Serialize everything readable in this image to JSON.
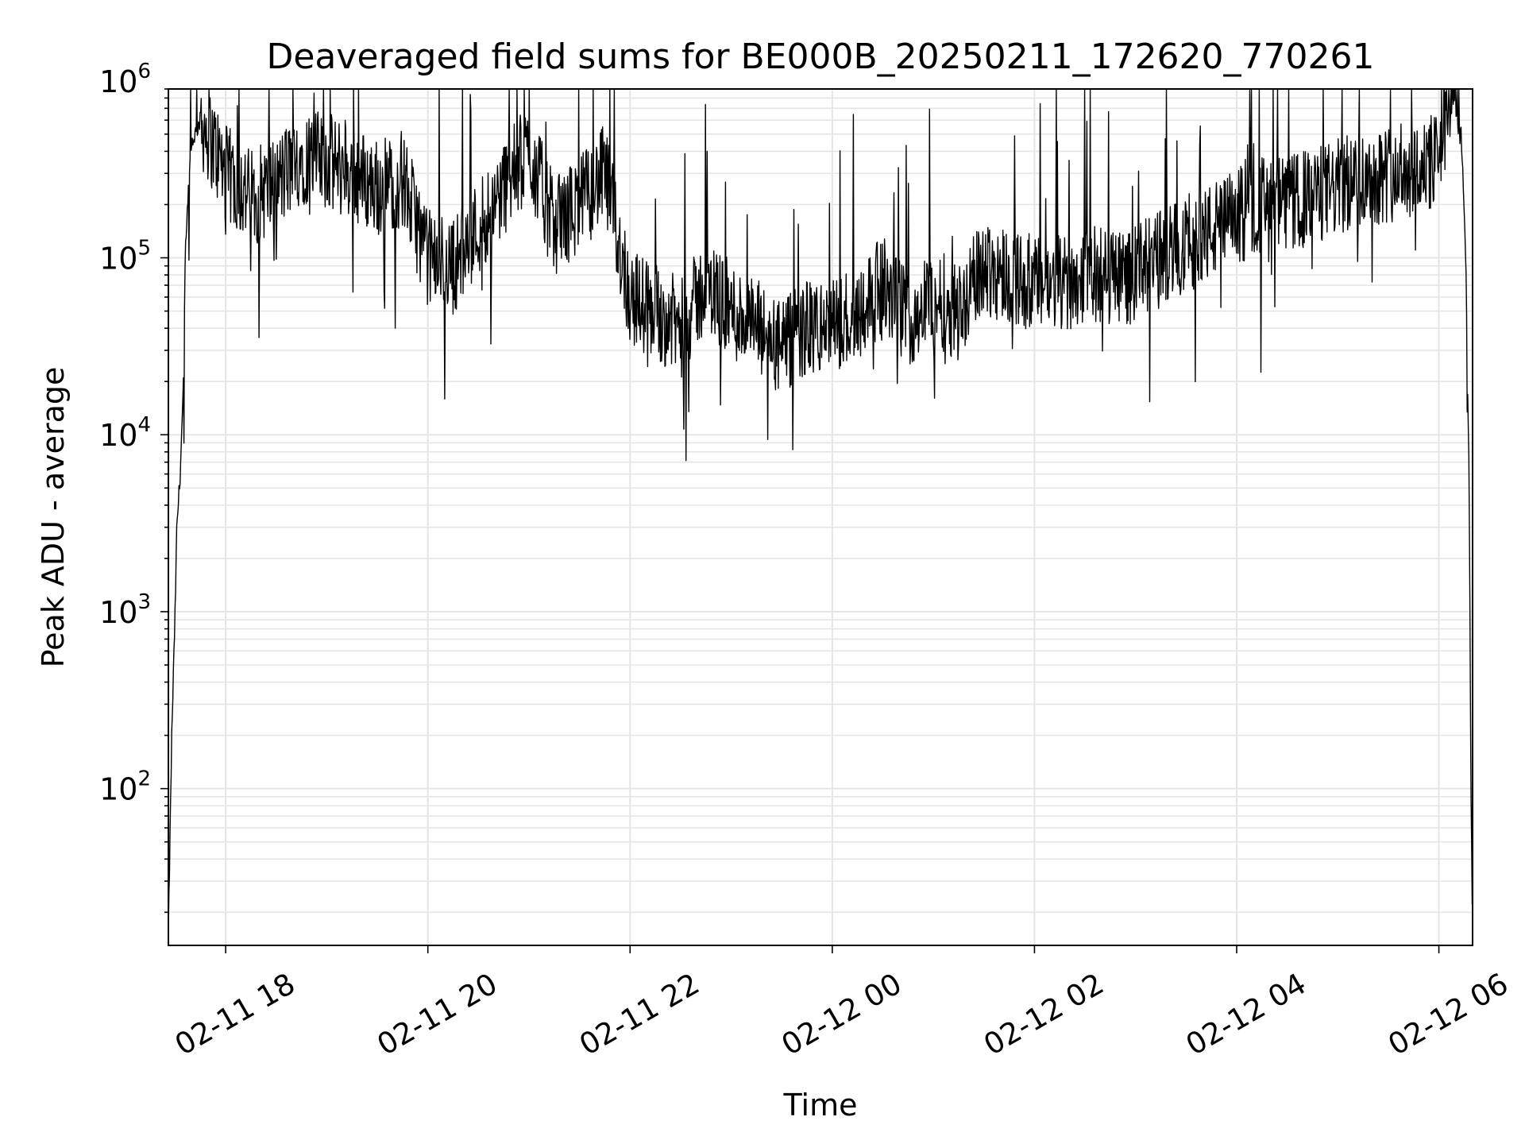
{
  "chart_data": {
    "type": "line",
    "title": "Deaveraged field sums for BE000B_20250211_172620_770261",
    "xlabel": "Time",
    "ylabel": "Peak ADU - average",
    "yscale": "log",
    "ylim": [
      13,
      900000
    ],
    "xlim": [
      "2025-02-11 17:26",
      "2025-02-12 06:20"
    ],
    "grid": true,
    "line_color": "#000000",
    "grid_color": "#e5e5e5",
    "x_ticks": [
      {
        "t": "2025-02-11 18:00",
        "label": "02-11 18"
      },
      {
        "t": "2025-02-11 20:00",
        "label": "02-11 20"
      },
      {
        "t": "2025-02-11 22:00",
        "label": "02-11 22"
      },
      {
        "t": "2025-02-12 00:00",
        "label": "02-12 00"
      },
      {
        "t": "2025-02-12 02:00",
        "label": "02-12 02"
      },
      {
        "t": "2025-02-12 04:00",
        "label": "02-12 04"
      },
      {
        "t": "2025-02-12 06:00",
        "label": "02-12 06"
      }
    ],
    "y_ticks": [
      {
        "value": 100,
        "base": "10",
        "exp": "2"
      },
      {
        "value": 1000,
        "base": "10",
        "exp": "3"
      },
      {
        "value": 10000,
        "base": "10",
        "exp": "4"
      },
      {
        "value": 100000,
        "base": "10",
        "exp": "5"
      },
      {
        "value": 1000000,
        "base": "10",
        "exp": "6"
      }
    ],
    "series": [
      {
        "x": [
          "2025-02-11 17:26",
          "2025-02-11 17:28",
          "2025-02-11 17:30",
          "2025-02-11 17:31",
          "2025-02-11 17:33",
          "2025-02-11 17:35",
          "2025-02-11 17:36",
          "2025-02-11 17:38",
          "2025-02-11 17:40",
          "2025-02-11 17:45",
          "2025-02-11 17:50",
          "2025-02-11 18:00",
          "2025-02-11 18:15",
          "2025-02-11 18:30",
          "2025-02-11 18:45",
          "2025-02-11 19:00",
          "2025-02-11 19:15",
          "2025-02-11 19:30",
          "2025-02-11 19:45",
          "2025-02-11 20:00",
          "2025-02-11 20:15",
          "2025-02-11 20:30",
          "2025-02-11 20:45",
          "2025-02-11 21:00",
          "2025-02-11 21:15",
          "2025-02-11 21:30",
          "2025-02-11 21:45",
          "2025-02-11 22:00",
          "2025-02-11 22:15",
          "2025-02-11 22:30",
          "2025-02-11 22:45",
          "2025-02-11 23:00",
          "2025-02-11 23:15",
          "2025-02-11 23:30",
          "2025-02-11 23:45",
          "2025-02-12 00:00",
          "2025-02-12 00:15",
          "2025-02-12 00:30",
          "2025-02-12 00:45",
          "2025-02-12 01:00",
          "2025-02-12 01:15",
          "2025-02-12 01:30",
          "2025-02-12 01:45",
          "2025-02-12 02:00",
          "2025-02-12 02:15",
          "2025-02-12 02:30",
          "2025-02-12 02:45",
          "2025-02-12 03:00",
          "2025-02-12 03:15",
          "2025-02-12 03:30",
          "2025-02-12 03:45",
          "2025-02-12 04:00",
          "2025-02-12 04:15",
          "2025-02-12 04:30",
          "2025-02-12 04:45",
          "2025-02-12 05:00",
          "2025-02-12 05:15",
          "2025-02-12 05:30",
          "2025-02-12 05:45",
          "2025-02-12 06:00",
          "2025-02-12 06:05",
          "2025-02-12 06:10",
          "2025-02-12 06:13",
          "2025-02-12 06:16",
          "2025-02-12 06:18",
          "2025-02-12 06:19",
          "2025-02-12 06:20"
        ],
        "y": [
          15,
          200,
          1000,
          3000,
          6000,
          20000,
          100000,
          250000,
          450000,
          600000,
          500000,
          300000,
          220000,
          260000,
          380000,
          350000,
          300000,
          250000,
          280000,
          100000,
          90000,
          150000,
          250000,
          400000,
          150000,
          200000,
          300000,
          60000,
          50000,
          40000,
          70000,
          50000,
          40000,
          30000,
          40000,
          40000,
          50000,
          70000,
          45000,
          60000,
          50000,
          90000,
          80000,
          70000,
          70000,
          80000,
          80000,
          80000,
          100000,
          120000,
          140000,
          170000,
          200000,
          200000,
          220000,
          250000,
          280000,
          300000,
          320000,
          350000,
          700000,
          900000,
          600000,
          100000,
          5000,
          100,
          15
        ]
      }
    ]
  }
}
